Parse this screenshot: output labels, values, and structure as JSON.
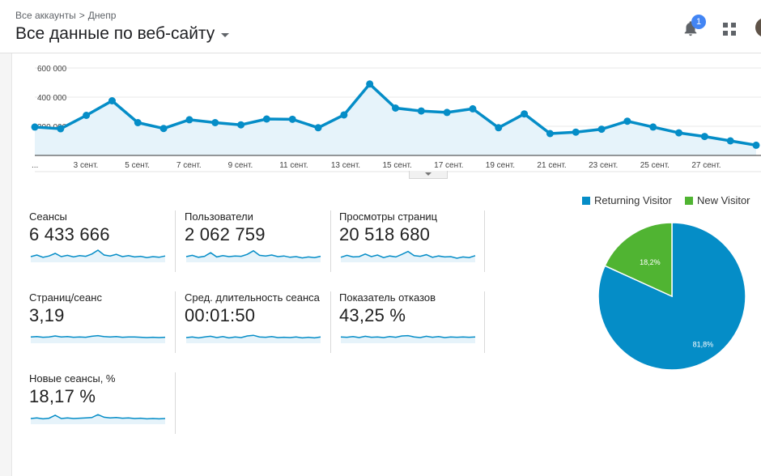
{
  "header": {
    "breadcrumb": {
      "root": "Все аккаунты",
      "separator": ">",
      "account": "Днепр"
    },
    "view_title": "Все данные по веб-сайту",
    "notifications": {
      "icon": "bell-icon",
      "count": "1"
    },
    "apps_icon": "apps-grid-icon"
  },
  "timeline": {
    "y_ticks": [
      "600 000",
      "400 000",
      "200 000"
    ],
    "x_ticks": [
      "...",
      "3 сент.",
      "5 сент.",
      "7 сент.",
      "9 сент.",
      "11 сент.",
      "13 сент.",
      "15 сент.",
      "17 сент.",
      "19 сент.",
      "21 сент.",
      "23 сент.",
      "25 сент.",
      "27 сент."
    ]
  },
  "chart_data": {
    "type": "area",
    "ylim": [
      0,
      700000
    ],
    "y_ticks": [
      200000,
      400000,
      600000
    ],
    "x": [
      1,
      2,
      3,
      4,
      5,
      6,
      7,
      8,
      9,
      10,
      11,
      12,
      13,
      14,
      15,
      16,
      17,
      18,
      19,
      20,
      21,
      22,
      23,
      24,
      25,
      26,
      27,
      28,
      29
    ],
    "values": [
      195000,
      183000,
      275000,
      375000,
      225000,
      185000,
      245000,
      225000,
      210000,
      250000,
      248000,
      190000,
      278000,
      490000,
      325000,
      305000,
      295000,
      320000,
      190000,
      285000,
      150000,
      160000,
      180000,
      235000,
      195000,
      155000,
      130000,
      100000,
      70000
    ],
    "color": "#058dc7",
    "fill": "#e6f3fa",
    "grid": true
  },
  "metrics": [
    {
      "label": "Сеансы",
      "value": "6 433 666",
      "spark": [
        50,
        55,
        48,
        52,
        60,
        50,
        54,
        49,
        53,
        51,
        58,
        70,
        55,
        52,
        57,
        50,
        53,
        49,
        51,
        47,
        50,
        48,
        52
      ]
    },
    {
      "label": "Пользователи",
      "value": "2 062 759",
      "spark": [
        50,
        54,
        48,
        51,
        62,
        49,
        53,
        50,
        52,
        51,
        57,
        68,
        54,
        52,
        55,
        50,
        52,
        48,
        50,
        46,
        49,
        47,
        51
      ]
    },
    {
      "label": "Просмотры страниц",
      "value": "20 518 680",
      "spark": [
        48,
        54,
        49,
        50,
        58,
        50,
        55,
        47,
        52,
        49,
        57,
        66,
        53,
        51,
        56,
        48,
        52,
        49,
        50,
        45,
        49,
        47,
        53
      ]
    },
    {
      "label": "Страниц/сеанс",
      "value": "3,19",
      "spark": [
        52,
        53,
        51,
        52,
        55,
        52,
        53,
        51,
        52,
        51,
        54,
        56,
        53,
        52,
        53,
        51,
        52,
        52,
        51,
        50,
        51,
        50,
        51
      ]
    },
    {
      "label": "Сред. длительность сеанса",
      "value": "00:01:50",
      "spark": [
        50,
        52,
        49,
        52,
        54,
        50,
        53,
        49,
        52,
        50,
        55,
        57,
        52,
        51,
        53,
        50,
        51,
        50,
        52,
        49,
        51,
        49,
        52
      ]
    },
    {
      "label": "Показатель отказов",
      "value": "43,25 %",
      "spark": [
        52,
        51,
        53,
        50,
        54,
        51,
        52,
        50,
        53,
        51,
        55,
        56,
        52,
        50,
        54,
        51,
        53,
        50,
        52,
        51,
        52,
        51,
        52
      ]
    },
    {
      "label": "Новые сеансы, %",
      "value": "18,17 %",
      "spark": [
        50,
        52,
        49,
        51,
        60,
        50,
        52,
        50,
        51,
        52,
        53,
        62,
        54,
        52,
        53,
        51,
        52,
        50,
        51,
        49,
        50,
        49,
        50
      ]
    }
  ],
  "pie": {
    "legend": [
      {
        "label": "Returning Visitor",
        "color": "#058dc7"
      },
      {
        "label": "New Visitor",
        "color": "#50b432"
      }
    ],
    "slices": [
      {
        "label": "81,8%",
        "value": 81.8,
        "color": "#058dc7"
      },
      {
        "label": "18,2%",
        "value": 18.2,
        "color": "#50b432"
      }
    ]
  }
}
